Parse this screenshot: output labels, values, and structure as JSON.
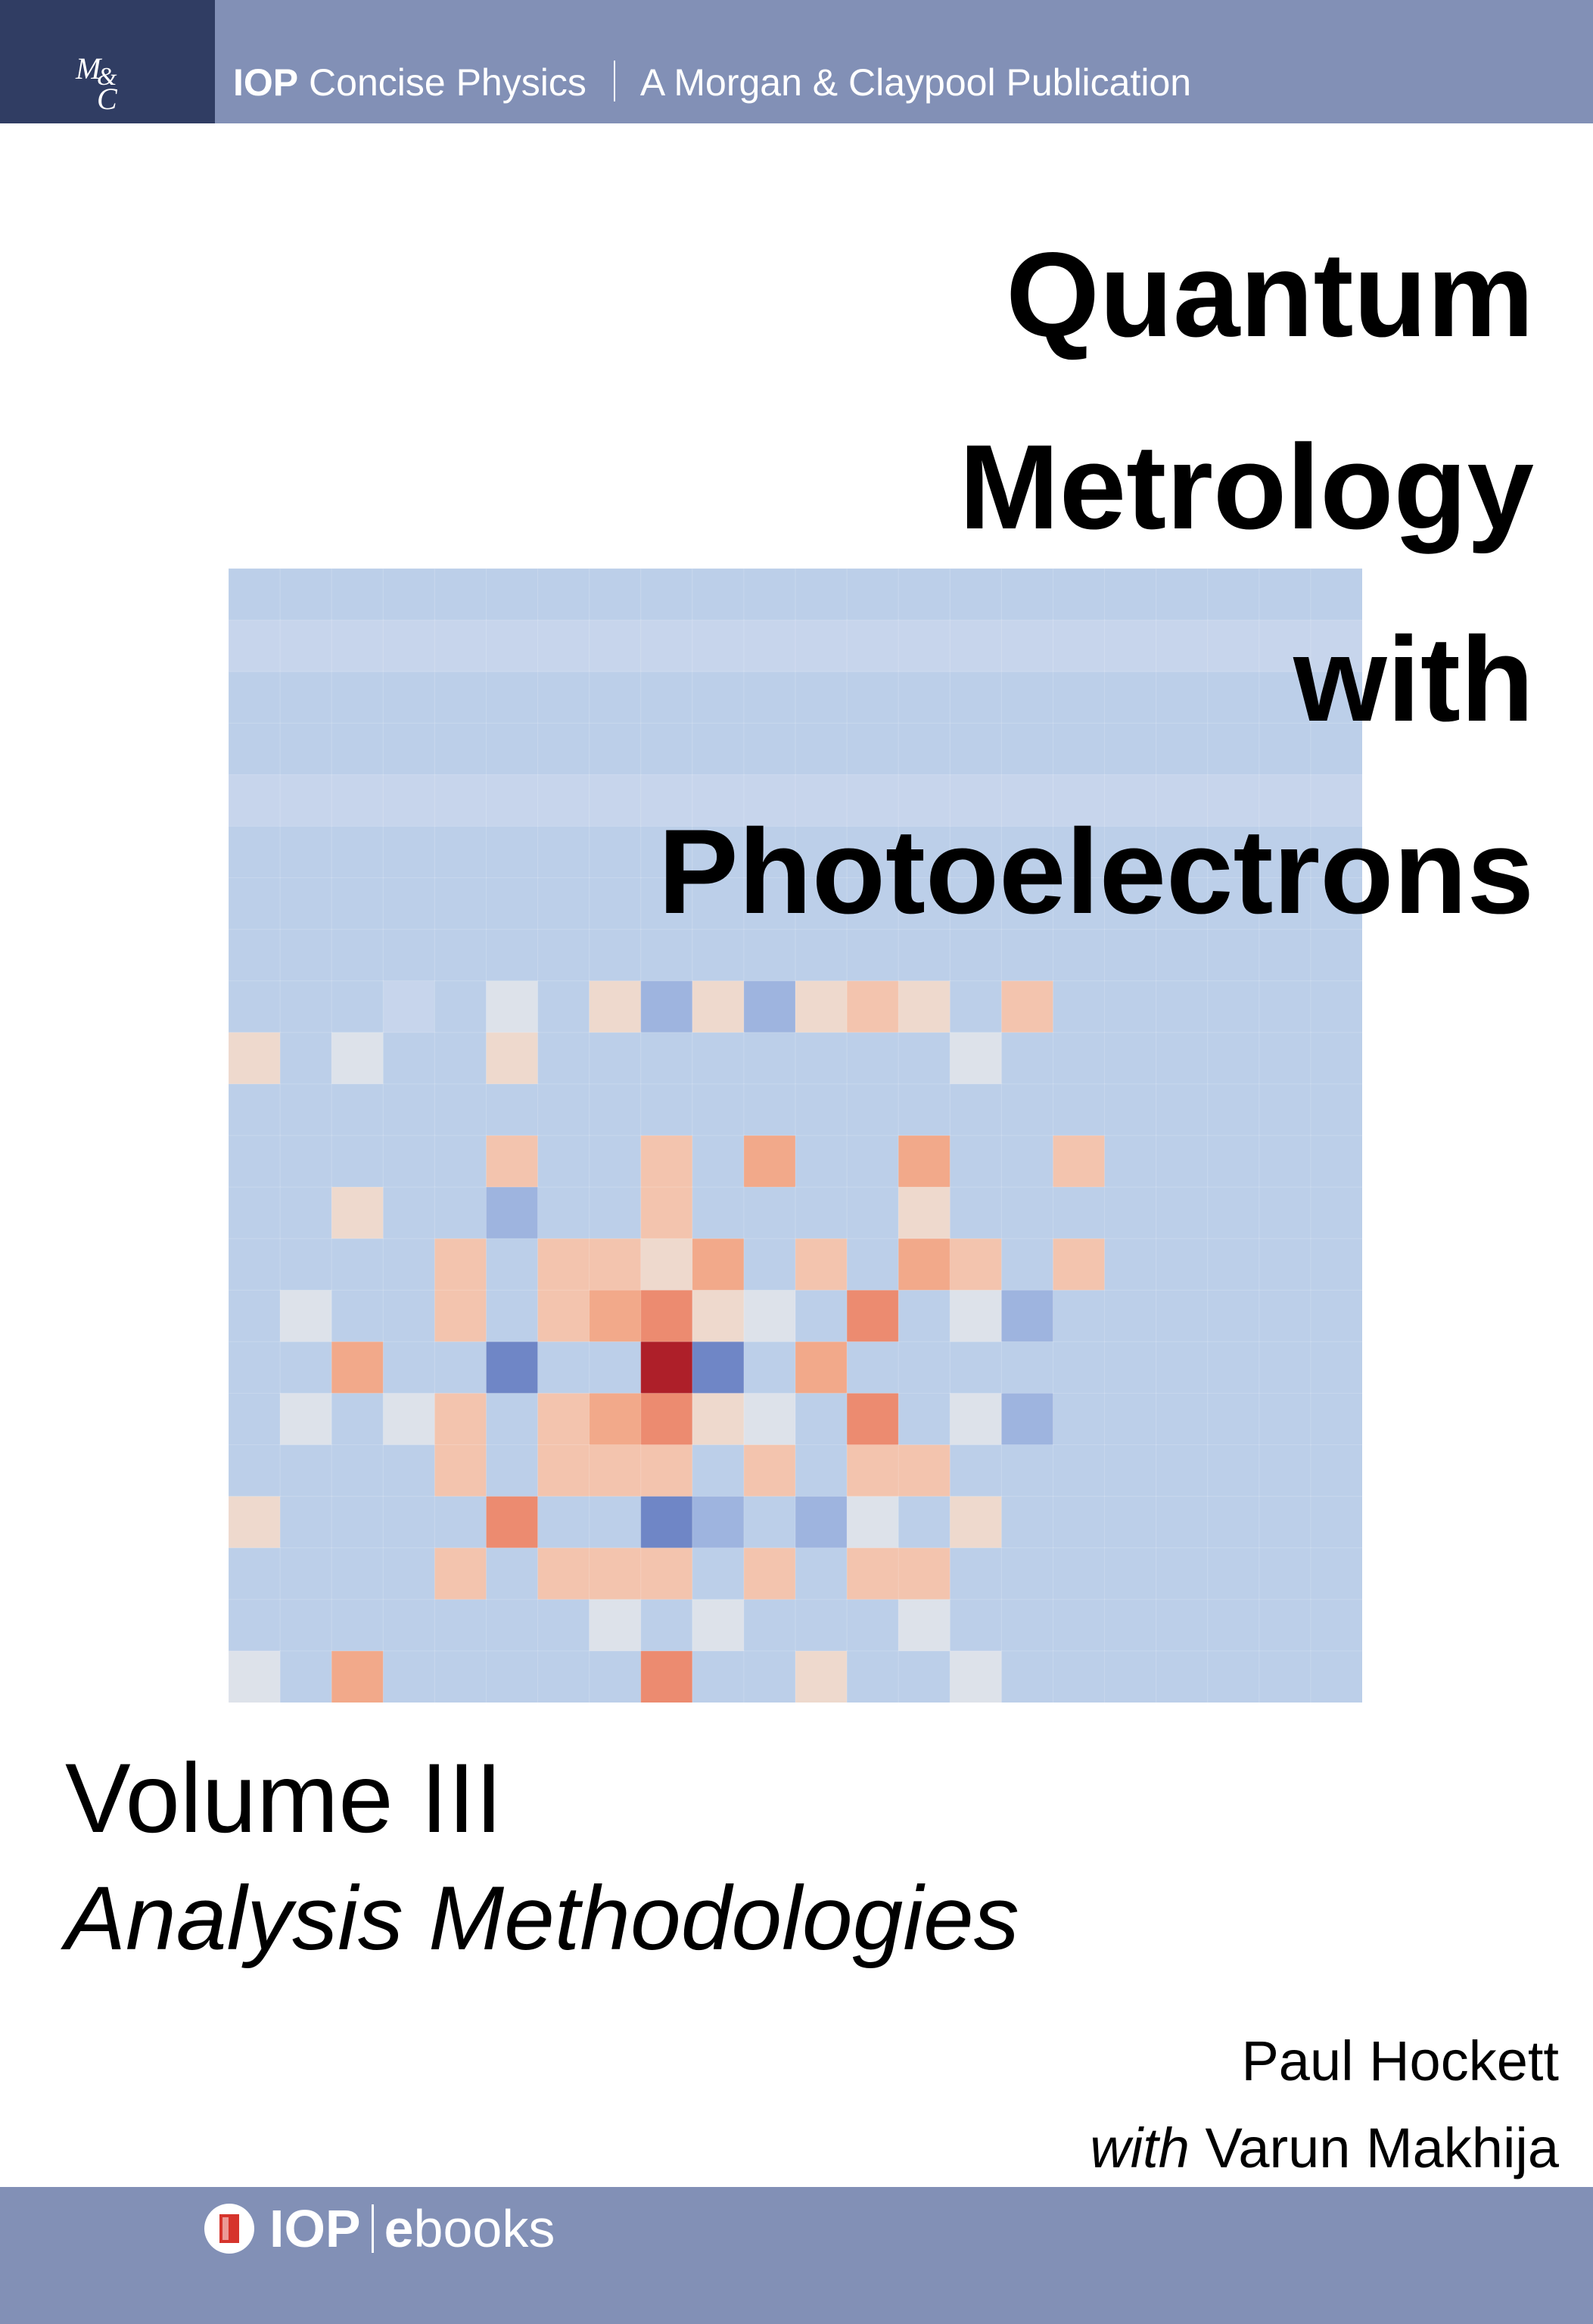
{
  "header": {
    "publisher_mark": "M&C",
    "series_brand": "IOP",
    "series_name": "Concise Physics",
    "publication": "A Morgan & Claypool Publication"
  },
  "title_lines": [
    "Quantum",
    "Metrology",
    "with",
    "Photoelectrons"
  ],
  "volume": "Volume III",
  "subtitle": "Analysis Methodologies",
  "author": "Paul Hockett",
  "coauthor": {
    "prefix": "with",
    "name": "Varun Makhija"
  },
  "footer": {
    "brand": "IOP",
    "product_prefix": "e",
    "product_rest": "books"
  },
  "colors": {
    "bar": "#8290b6",
    "mc_box": "#303d63",
    "palette": [
      "#6f86c6",
      "#9eb4df",
      "#bccfe9",
      "#c7d5ec",
      "#dde2ea",
      "#eed9cd",
      "#f3c4ae",
      "#f2a98a",
      "#ec8b70",
      "#ae1f29"
    ]
  },
  "artwork": {
    "description_cells": "22x22 colour-map matrix",
    "matrix": [
      "2222222222222222222222",
      "3333333333333333333333",
      "2222222222222222222222",
      "2222222222222222222222",
      "3333333333333333333333",
      "2222222222222222222222",
      "2222222222222222222222",
      "2222222222222222222222",
      "2223242515156526222222",
      "5242252222222242222222",
      "2222222222222222222222",
      "2222262262722722622222",
      "2252212262222522222222",
      "2222626657262762622222",
      "2422626785428241222222",
      "2272202290272222222222",
      "2424626785428241222222",
      "2222626662626622222222",
      "5222282201214252222222",
      "2222626662626622222222",
      "2222222424222422222222",
      "4272222282252242222222"
    ]
  }
}
